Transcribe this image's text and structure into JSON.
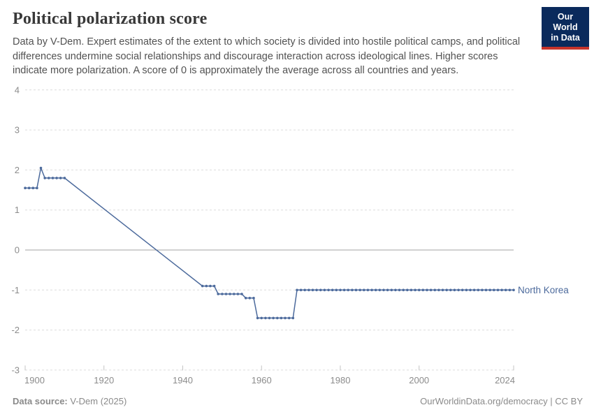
{
  "header": {
    "title": "Political polarization score",
    "subtitle": "Data by V-Dem. Expert estimates of the extent to which society is divided into hostile political camps, and political differences undermine social relationships and discourage interaction across ideological lines. Higher scores indicate more polarization. A score of 0 is approximately the average across all countries and years."
  },
  "logo": {
    "line1": "Our World",
    "line2": "in Data",
    "bg_color": "#0A2A5C",
    "accent_color": "#C7342B"
  },
  "footer": {
    "source_label": "Data source:",
    "source_value": " V-Dem (2025)",
    "credit": "OurWorldinData.org/democracy | CC BY"
  },
  "colors": {
    "series_blue": "#4C6A9C",
    "gridline": "#dcdcdc",
    "zero_line": "#a3a3a3",
    "tick_mark": "#c4c4c4",
    "axis_text": "#8c8c8c"
  },
  "chart_data": {
    "type": "line",
    "title": "Political polarization score",
    "xlabel": "",
    "ylabel": "",
    "x_range": [
      1900,
      2024
    ],
    "y_range": [
      -3,
      4
    ],
    "x_ticks": [
      1900,
      1920,
      1940,
      1960,
      1980,
      2000,
      2024
    ],
    "y_ticks": [
      4,
      3,
      2,
      1,
      0,
      -1,
      -2,
      -3
    ],
    "grid": true,
    "legend_position": "end-of-line label",
    "series": [
      {
        "name": "North Korea",
        "color": "#4C6A9C",
        "points_runs": [
          {
            "start": 1900,
            "end": 1903,
            "value": 1.55
          },
          {
            "start": 1904,
            "end": 1904,
            "value": 2.05
          },
          {
            "start": 1905,
            "end": 1910,
            "value": 1.8
          },
          {
            "start": 1945,
            "end": 1948,
            "value": -0.9
          },
          {
            "start": 1949,
            "end": 1955,
            "value": -1.1
          },
          {
            "start": 1956,
            "end": 1958,
            "value": -1.2
          },
          {
            "start": 1959,
            "end": 1968,
            "value": -1.7
          },
          {
            "start": 1969,
            "end": 2024,
            "value": -1.0
          }
        ]
      }
    ]
  }
}
